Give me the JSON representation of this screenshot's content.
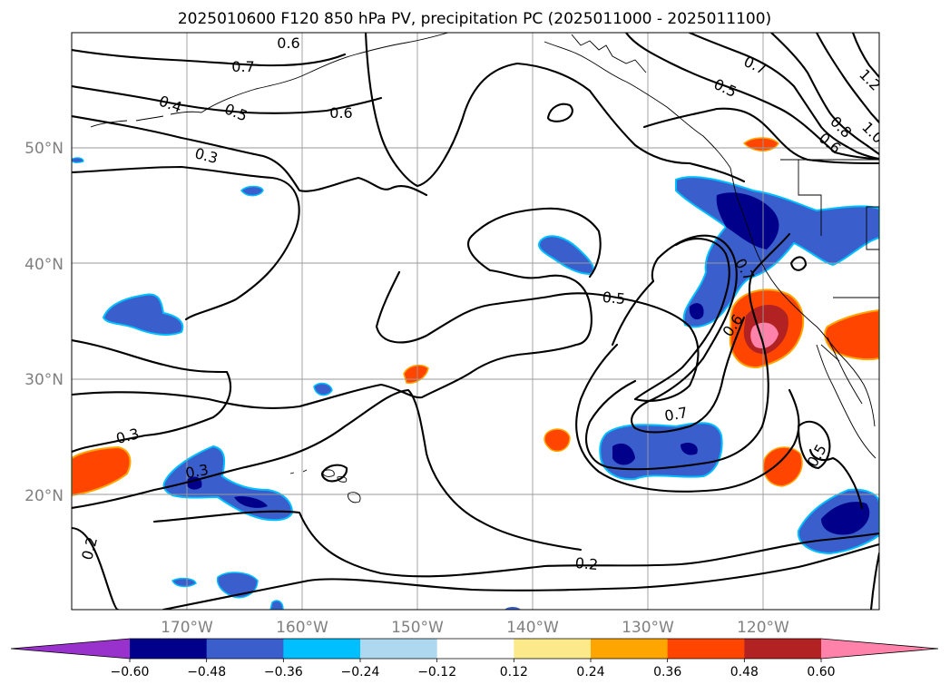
{
  "title": "2025010600 F120 850 hPa PV, precipitation PC (2025011000 - 2025011100)",
  "lon_ticks": [
    "170°W",
    "160°W",
    "150°W",
    "140°W",
    "130°W",
    "120°W"
  ],
  "lat_ticks": [
    "50°N",
    "40°N",
    "30°N",
    "20°N"
  ],
  "contour_labels": [
    "0.7",
    "0.4",
    "0.5",
    "0.6",
    "0.3",
    "0.6",
    "0.7",
    "0.5",
    "1.2",
    "0.8",
    "1.0",
    "0.6",
    "0.5",
    "0.6",
    "0.7",
    "0.7",
    "0.5",
    "0.3",
    "0.3",
    "0.2",
    "0.2"
  ],
  "colorbar": {
    "ticks": [
      "−0.60",
      "−0.48",
      "−0.36",
      "−0.24",
      "−0.12",
      "0.12",
      "0.24",
      "0.36",
      "0.48",
      "0.60"
    ],
    "colors": [
      "#9932cc",
      "#00008b",
      "#3a5fcd",
      "#00bfff",
      "#add8f0",
      "#ffffff",
      "#fbe98a",
      "#ffa500",
      "#ff4500",
      "#b22222",
      "#ff82ab"
    ]
  },
  "colors": {
    "strong_negative": "#00008b",
    "negative": "#3a5fcd",
    "weak_negative": "#00bfff",
    "positive": "#ff4500",
    "strong_positive": "#b22222",
    "very_strong_positive": "#ff82ab"
  }
}
